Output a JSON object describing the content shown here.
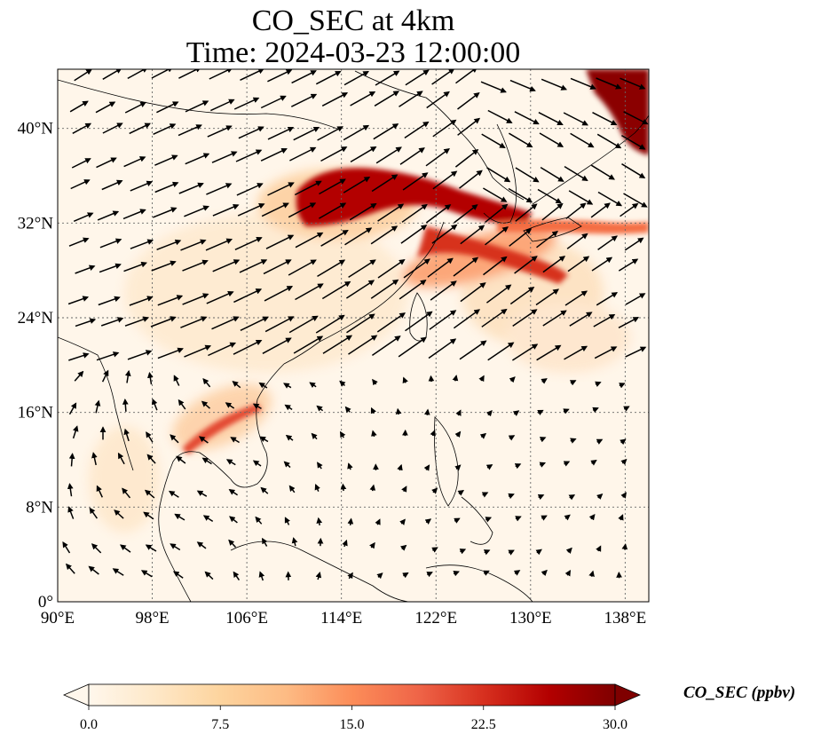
{
  "title": {
    "line1": "CO_SEC at 4km",
    "line2": "Time: 2024-03-23 12:00:00"
  },
  "map": {
    "lon_range": [
      90,
      140
    ],
    "lat_range": [
      0,
      45
    ],
    "lon_ticks": [
      "90°E",
      "98°E",
      "106°E",
      "114°E",
      "122°E",
      "130°E",
      "138°E"
    ],
    "lat_ticks": [
      "0°",
      "8°N",
      "16°N",
      "24°N",
      "32°N",
      "40°N"
    ],
    "gridlines": true,
    "field": "CO_SEC",
    "overlay": "wind vectors"
  },
  "colorbar": {
    "label": "CO_SEC (ppbv)",
    "ticks": [
      "0.0",
      "7.5",
      "15.0",
      "22.5",
      "30.0"
    ],
    "range": [
      0,
      30
    ],
    "extend": "both",
    "colormap": "OrRd",
    "colors": [
      "#fff7ec",
      "#fee8c8",
      "#fdd49e",
      "#fdbb84",
      "#fc8d59",
      "#ef6548",
      "#d7301f",
      "#b30000",
      "#7f0000"
    ]
  }
}
